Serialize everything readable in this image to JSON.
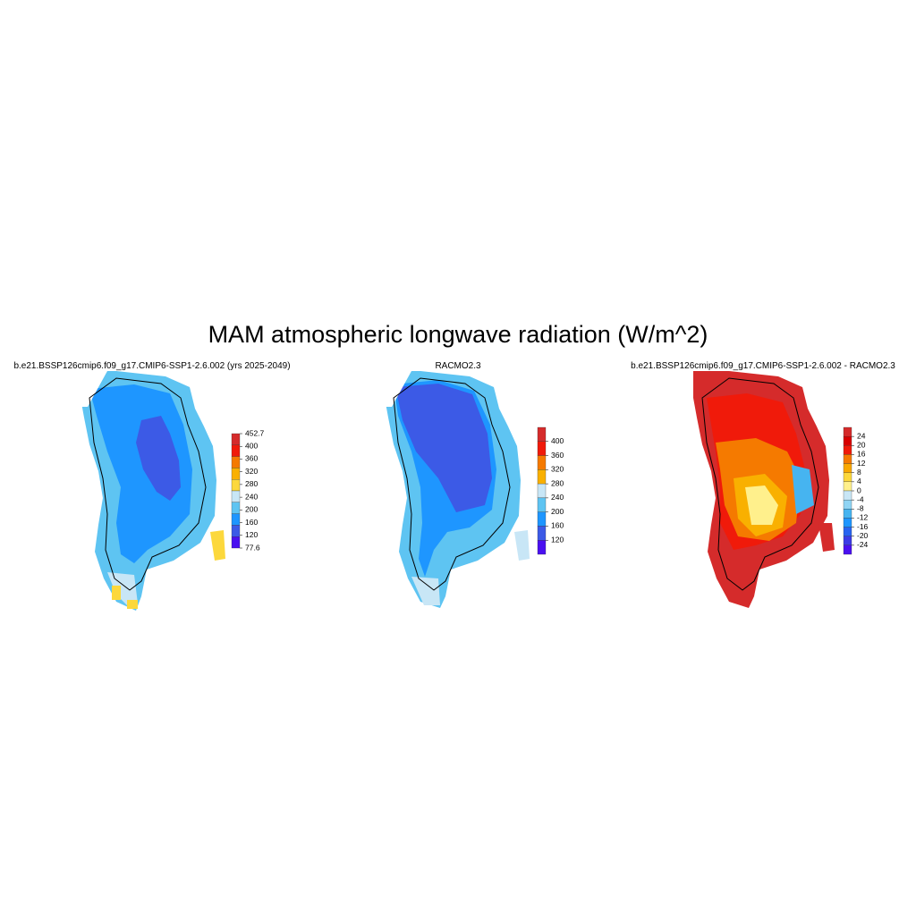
{
  "title": "MAM atmospheric longwave radiation (W/m^2)",
  "panels": [
    {
      "title": "b.e21.BSSP126cmip6.f09_g17.CMIP6-SSP1-2.6.002 (yrs 2025-2049)",
      "colorbar": {
        "colors": [
          "#d52b2b",
          "#f01a0a",
          "#f57a00",
          "#f9b000",
          "#fcd83c",
          "#c8e6f6",
          "#5ec4f2",
          "#1e96ff",
          "#3c5ae6",
          "#4a10f0"
        ],
        "labels": [
          "452.7",
          "400",
          "360",
          "320",
          "280",
          "240",
          "200",
          "160",
          "120",
          "77.6"
        ]
      }
    },
    {
      "title": "RACMO2.3",
      "colorbar": {
        "colors": [
          "#d52b2b",
          "#f01a0a",
          "#f57a00",
          "#f9b000",
          "#c8e6f6",
          "#5ec4f2",
          "#1e96ff",
          "#3c5ae6",
          "#4a10f0"
        ],
        "labels": [
          "400",
          "360",
          "320",
          "280",
          "240",
          "200",
          "160",
          "120"
        ]
      }
    },
    {
      "title": "b.e21.BSSP126cmip6.f09_g17.CMIP6-SSP1-2.6.002 - RACMO2.3",
      "colorbar": {
        "colors": [
          "#d52b2b",
          "#d80000",
          "#f01a0a",
          "#f57a00",
          "#f9a800",
          "#fcd83c",
          "#fff08c",
          "#c8e6f6",
          "#8fd4f4",
          "#46b4f0",
          "#1e96ff",
          "#2864f0",
          "#3c3ce6",
          "#4a10f0"
        ],
        "labels": [
          "24",
          "20",
          "16",
          "12",
          "8",
          "4",
          "0",
          "-4",
          "-8",
          "-12",
          "-16",
          "-20",
          "-24"
        ]
      }
    }
  ]
}
